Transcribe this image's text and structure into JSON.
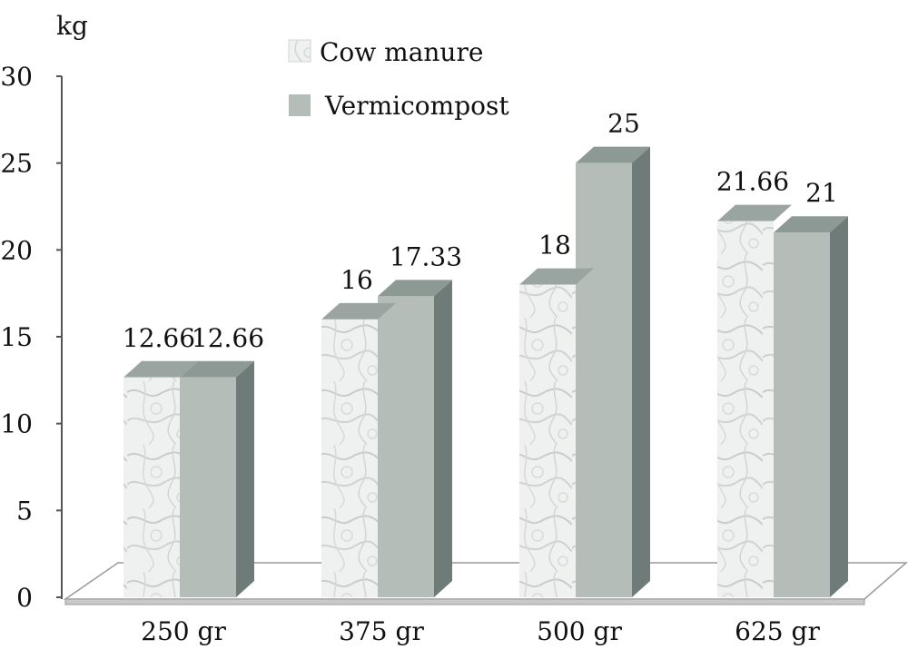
{
  "chart_data": {
    "type": "bar",
    "unit_label": "kg",
    "categories": [
      "250 gr",
      "375 gr",
      "500 gr",
      "625 gr"
    ],
    "series": [
      {
        "name": "Cow manure",
        "values": [
          12.66,
          16,
          18,
          21.66
        ],
        "labels": [
          "12.66",
          "16",
          "18",
          "21.66"
        ]
      },
      {
        "name": "Vermicompost",
        "values": [
          12.66,
          17.33,
          25,
          21
        ],
        "labels": [
          "12.66",
          "17.33",
          "25",
          "21"
        ]
      }
    ],
    "ylim": [
      0,
      30
    ],
    "yticks": [
      "0",
      "5",
      "10",
      "15",
      "20",
      "25",
      "30"
    ],
    "grid": false,
    "legend_position": "top"
  },
  "colors": {
    "cow_manure_fill": "#e8eceb",
    "cow_manure_texture": "#c7cecd",
    "vermicompost_front": "#b5bdb9",
    "vermicompost_side": "#6f7b78",
    "vermicompost_top": "#8d9995",
    "axis": "#555555"
  }
}
